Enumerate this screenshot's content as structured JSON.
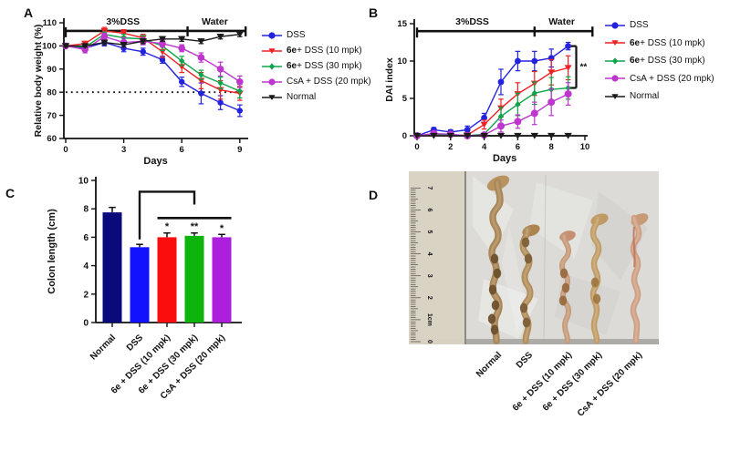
{
  "figure": {
    "panel_labels": {
      "a": "A",
      "b": "B",
      "c": "C",
      "d": "D"
    }
  },
  "legend": {
    "items": [
      {
        "bold": "",
        "text": "DSS",
        "marker": "circle",
        "color": "#2323dd"
      },
      {
        "bold": "6e",
        "text": " + DSS (10 mpk)",
        "marker": "triangle-down",
        "color": "#ee2124"
      },
      {
        "bold": "6e",
        "text": " + DSS (30 mpk)",
        "marker": "diamond",
        "color": "#0ca549"
      },
      {
        "bold": "",
        "text": "CsA + DSS (20 mpk)",
        "marker": "circle",
        "color": "#bd36ce"
      },
      {
        "bold": "",
        "text": "Normal",
        "marker": "triangle-down",
        "color": "#1a1a1a"
      }
    ]
  },
  "chart_data": [
    {
      "id": "A",
      "type": "line",
      "title": "",
      "xlabel": "Days",
      "ylabel": "Relative body weight (%)",
      "xlim": [
        0,
        9.3
      ],
      "ylim": [
        60,
        110
      ],
      "xticks": [
        0,
        3,
        6,
        9
      ],
      "yticks": [
        60,
        70,
        80,
        90,
        100,
        110
      ],
      "grid": false,
      "legend_position": "right",
      "phase_line_y": 106.5,
      "phases": [
        {
          "label": "3%DSS",
          "from": 0,
          "to": 6.3
        },
        {
          "label": "Water",
          "from": 6.3,
          "to": 9.3
        }
      ],
      "reference_dotted_y": 80,
      "x": [
        0,
        1,
        2,
        3,
        4,
        5,
        6,
        7,
        8,
        9
      ],
      "series": [
        {
          "name": "DSS",
          "marker": "circle",
          "color": "#2323dd",
          "values": [
            100,
            99,
            101.5,
            99,
            97.5,
            94,
            84.5,
            79.5,
            75.5,
            72
          ],
          "errors": [
            0.5,
            1,
            1.5,
            1.5,
            1.5,
            1.5,
            2,
            4.5,
            3,
            2.5
          ]
        },
        {
          "name": "6e + DSS (10 mpk)",
          "marker": "triangle-down",
          "color": "#ee2124",
          "values": [
            100,
            101,
            106.5,
            105.5,
            103.5,
            97.5,
            91,
            85,
            81,
            79.5
          ],
          "errors": [
            0.5,
            1,
            1.5,
            1.5,
            1.5,
            2.5,
            2.5,
            3.5,
            4,
            3
          ]
        },
        {
          "name": "6e + DSS (30 mpk)",
          "marker": "diamond",
          "color": "#0ca549",
          "values": [
            100,
            99.5,
            105,
            103.5,
            103,
            100,
            93.5,
            87.5,
            84,
            80.5
          ],
          "errors": [
            0.5,
            1,
            1,
            1.5,
            1.5,
            2,
            2,
            2,
            2.5,
            3
          ]
        },
        {
          "name": "CsA + DSS (20 mpk)",
          "marker": "circle",
          "color": "#bd36ce",
          "values": [
            100,
            98.5,
            104,
            101.5,
            102,
            101,
            99,
            95,
            90,
            84.5
          ],
          "errors": [
            0.5,
            1.5,
            1.5,
            2,
            1.5,
            1.5,
            1.5,
            2,
            3,
            2.5
          ]
        },
        {
          "name": "Normal",
          "marker": "triangle-down",
          "color": "#1a1a1a",
          "values": [
            100,
            100,
            101.5,
            100.5,
            102,
            103,
            103,
            102,
            104,
            105
          ],
          "errors": [
            0.5,
            0.5,
            1,
            1,
            1,
            1,
            1,
            1,
            1,
            1
          ]
        }
      ]
    },
    {
      "id": "B",
      "type": "line",
      "title": "",
      "xlabel": "Days",
      "ylabel": "DAI index",
      "xlim": [
        0,
        10.45
      ],
      "ylim": [
        0,
        15
      ],
      "xticks": [
        0,
        2,
        4,
        6,
        8,
        10
      ],
      "yticks": [
        0,
        5,
        10,
        15
      ],
      "grid": false,
      "legend_position": "right",
      "phase_line_y": 14,
      "phases": [
        {
          "label": "3%DSS",
          "from": 0,
          "to": 7
        },
        {
          "label": "Water",
          "from": 7,
          "to": 10.45
        }
      ],
      "sig_bracket": {
        "label": "**",
        "y_top": 12,
        "y_bottom": 6.4
      },
      "x": [
        0,
        1,
        2,
        3,
        4,
        5,
        6,
        7,
        8,
        9
      ],
      "series": [
        {
          "name": "DSS",
          "marker": "circle",
          "color": "#2323dd",
          "values": [
            0,
            0.8,
            0.5,
            0.8,
            2.4,
            7.2,
            10,
            10,
            10.4,
            12
          ],
          "errors": [
            0,
            0.3,
            0.3,
            0.5,
            0.6,
            1.7,
            1.3,
            1.3,
            1.2,
            0.5
          ]
        },
        {
          "name": "6e + DSS (10 mpk)",
          "marker": "triangle-down",
          "color": "#ee2124",
          "values": [
            0,
            0,
            0,
            0.1,
            1.5,
            3.7,
            5.6,
            7,
            8.5,
            9.1
          ],
          "errors": [
            0,
            0,
            0,
            0.1,
            0.6,
            1.2,
            1.5,
            1.6,
            1.7,
            1.6
          ]
        },
        {
          "name": "6e + DSS (30 mpk)",
          "marker": "diamond",
          "color": "#0ca549",
          "values": [
            0,
            0.2,
            0.1,
            0,
            0.2,
            2.6,
            4.2,
            5.7,
            6.2,
            6.4
          ],
          "errors": [
            0,
            0.2,
            0.1,
            0,
            0.2,
            1.2,
            1.5,
            1.5,
            1.6,
            1.5
          ]
        },
        {
          "name": "CsA + DSS (20 mpk)",
          "marker": "circle",
          "color": "#bd36ce",
          "values": [
            0,
            0.3,
            0.2,
            0,
            0.1,
            1.3,
            1.9,
            3,
            4.5,
            5.6
          ],
          "errors": [
            0,
            0.3,
            0.2,
            0,
            0.1,
            0.8,
            0.9,
            1.5,
            1.8,
            1.5
          ]
        },
        {
          "name": "Normal",
          "marker": "triangle-down",
          "color": "#1a1a1a",
          "values": [
            0,
            0,
            0,
            0,
            0,
            0,
            0,
            0,
            0,
            0
          ],
          "errors": [
            0,
            0,
            0,
            0,
            0,
            0,
            0,
            0,
            0,
            0
          ]
        }
      ]
    },
    {
      "id": "C",
      "type": "bar",
      "title": "",
      "xlabel": "",
      "ylabel": "Colon length (cm)",
      "ylim": [
        0,
        10
      ],
      "yticks": [
        0,
        2,
        4,
        6,
        8,
        10
      ],
      "categories": [
        "Normal",
        "DSS",
        "6e + DSS (10 mpk)",
        "6e + DSS (30 mpk)",
        "CsA + DSS (20 mpk)"
      ],
      "values": [
        7.75,
        5.3,
        6.0,
        6.1,
        6.0
      ],
      "errors": [
        0.35,
        0.2,
        0.3,
        0.2,
        0.2
      ],
      "bar_colors": [
        "#0a0a7d",
        "#1212ff",
        "#fb0d0d",
        "#0cb40c",
        "#ab1fdd"
      ],
      "sig_labels": [
        "",
        "",
        "*",
        "**",
        "*"
      ],
      "sig_color": "#ee2124",
      "bracket": {
        "from": 1,
        "to": 3,
        "y_from": 5.85,
        "y_top": 9.2,
        "y_to": 8.3
      },
      "hline": {
        "from": 2,
        "to": 4,
        "y": 7.35
      }
    }
  ],
  "photo": {
    "ruler_labels": [
      "0",
      "1cm",
      "2",
      "3",
      "4",
      "5",
      "6",
      "7"
    ],
    "categories": [
      "Normal",
      "DSS",
      "6e + DSS (10 mpk)",
      "6e + DSS (30 mpk)",
      "CsA + DSS (20 mpk)"
    ]
  }
}
